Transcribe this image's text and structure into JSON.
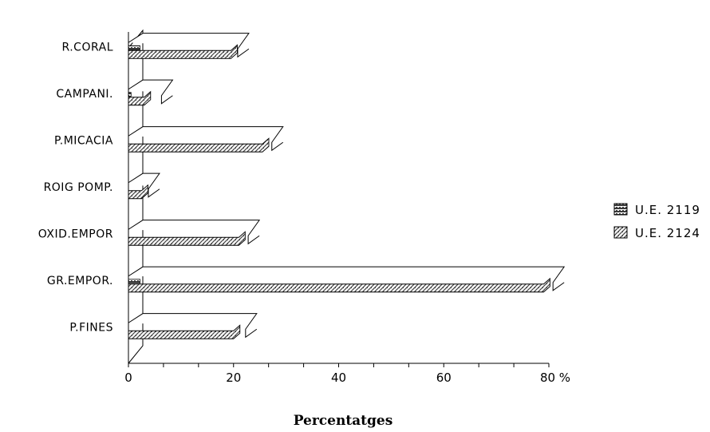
{
  "chart_data": {
    "type": "bar",
    "orientation": "horizontal",
    "style": "3d-hatched",
    "categories": [
      "R.CORAL",
      "CAMPANI.",
      "P.MICACIA",
      "ROIG POMP.",
      "OXID.EMPOR",
      "GR.EMPOR.",
      "P.FINES"
    ],
    "series": [
      {
        "name": "U.E. 2119",
        "values": [
          2.2,
          0.5,
          0,
          0,
          0,
          2.2,
          0
        ]
      },
      {
        "name": "U.E. 2124",
        "values": [
          19.5,
          3.0,
          25.5,
          2.5,
          21,
          79,
          20
        ]
      }
    ],
    "back_values": [
      22,
      7.5,
      28.5,
      5,
      24,
      82,
      23.5
    ],
    "title": "",
    "xlabel": "Percentatges",
    "ylabel": "",
    "xlim": [
      0,
      80
    ],
    "x_ticks": [
      "0",
      "20",
      "40",
      "60",
      "80 %"
    ],
    "grid": false,
    "legend_position": "right",
    "colors": {
      "series_0": "#555555",
      "series_1": "#8a8a8a",
      "outline": "#000000",
      "background": "#ffffff"
    }
  }
}
